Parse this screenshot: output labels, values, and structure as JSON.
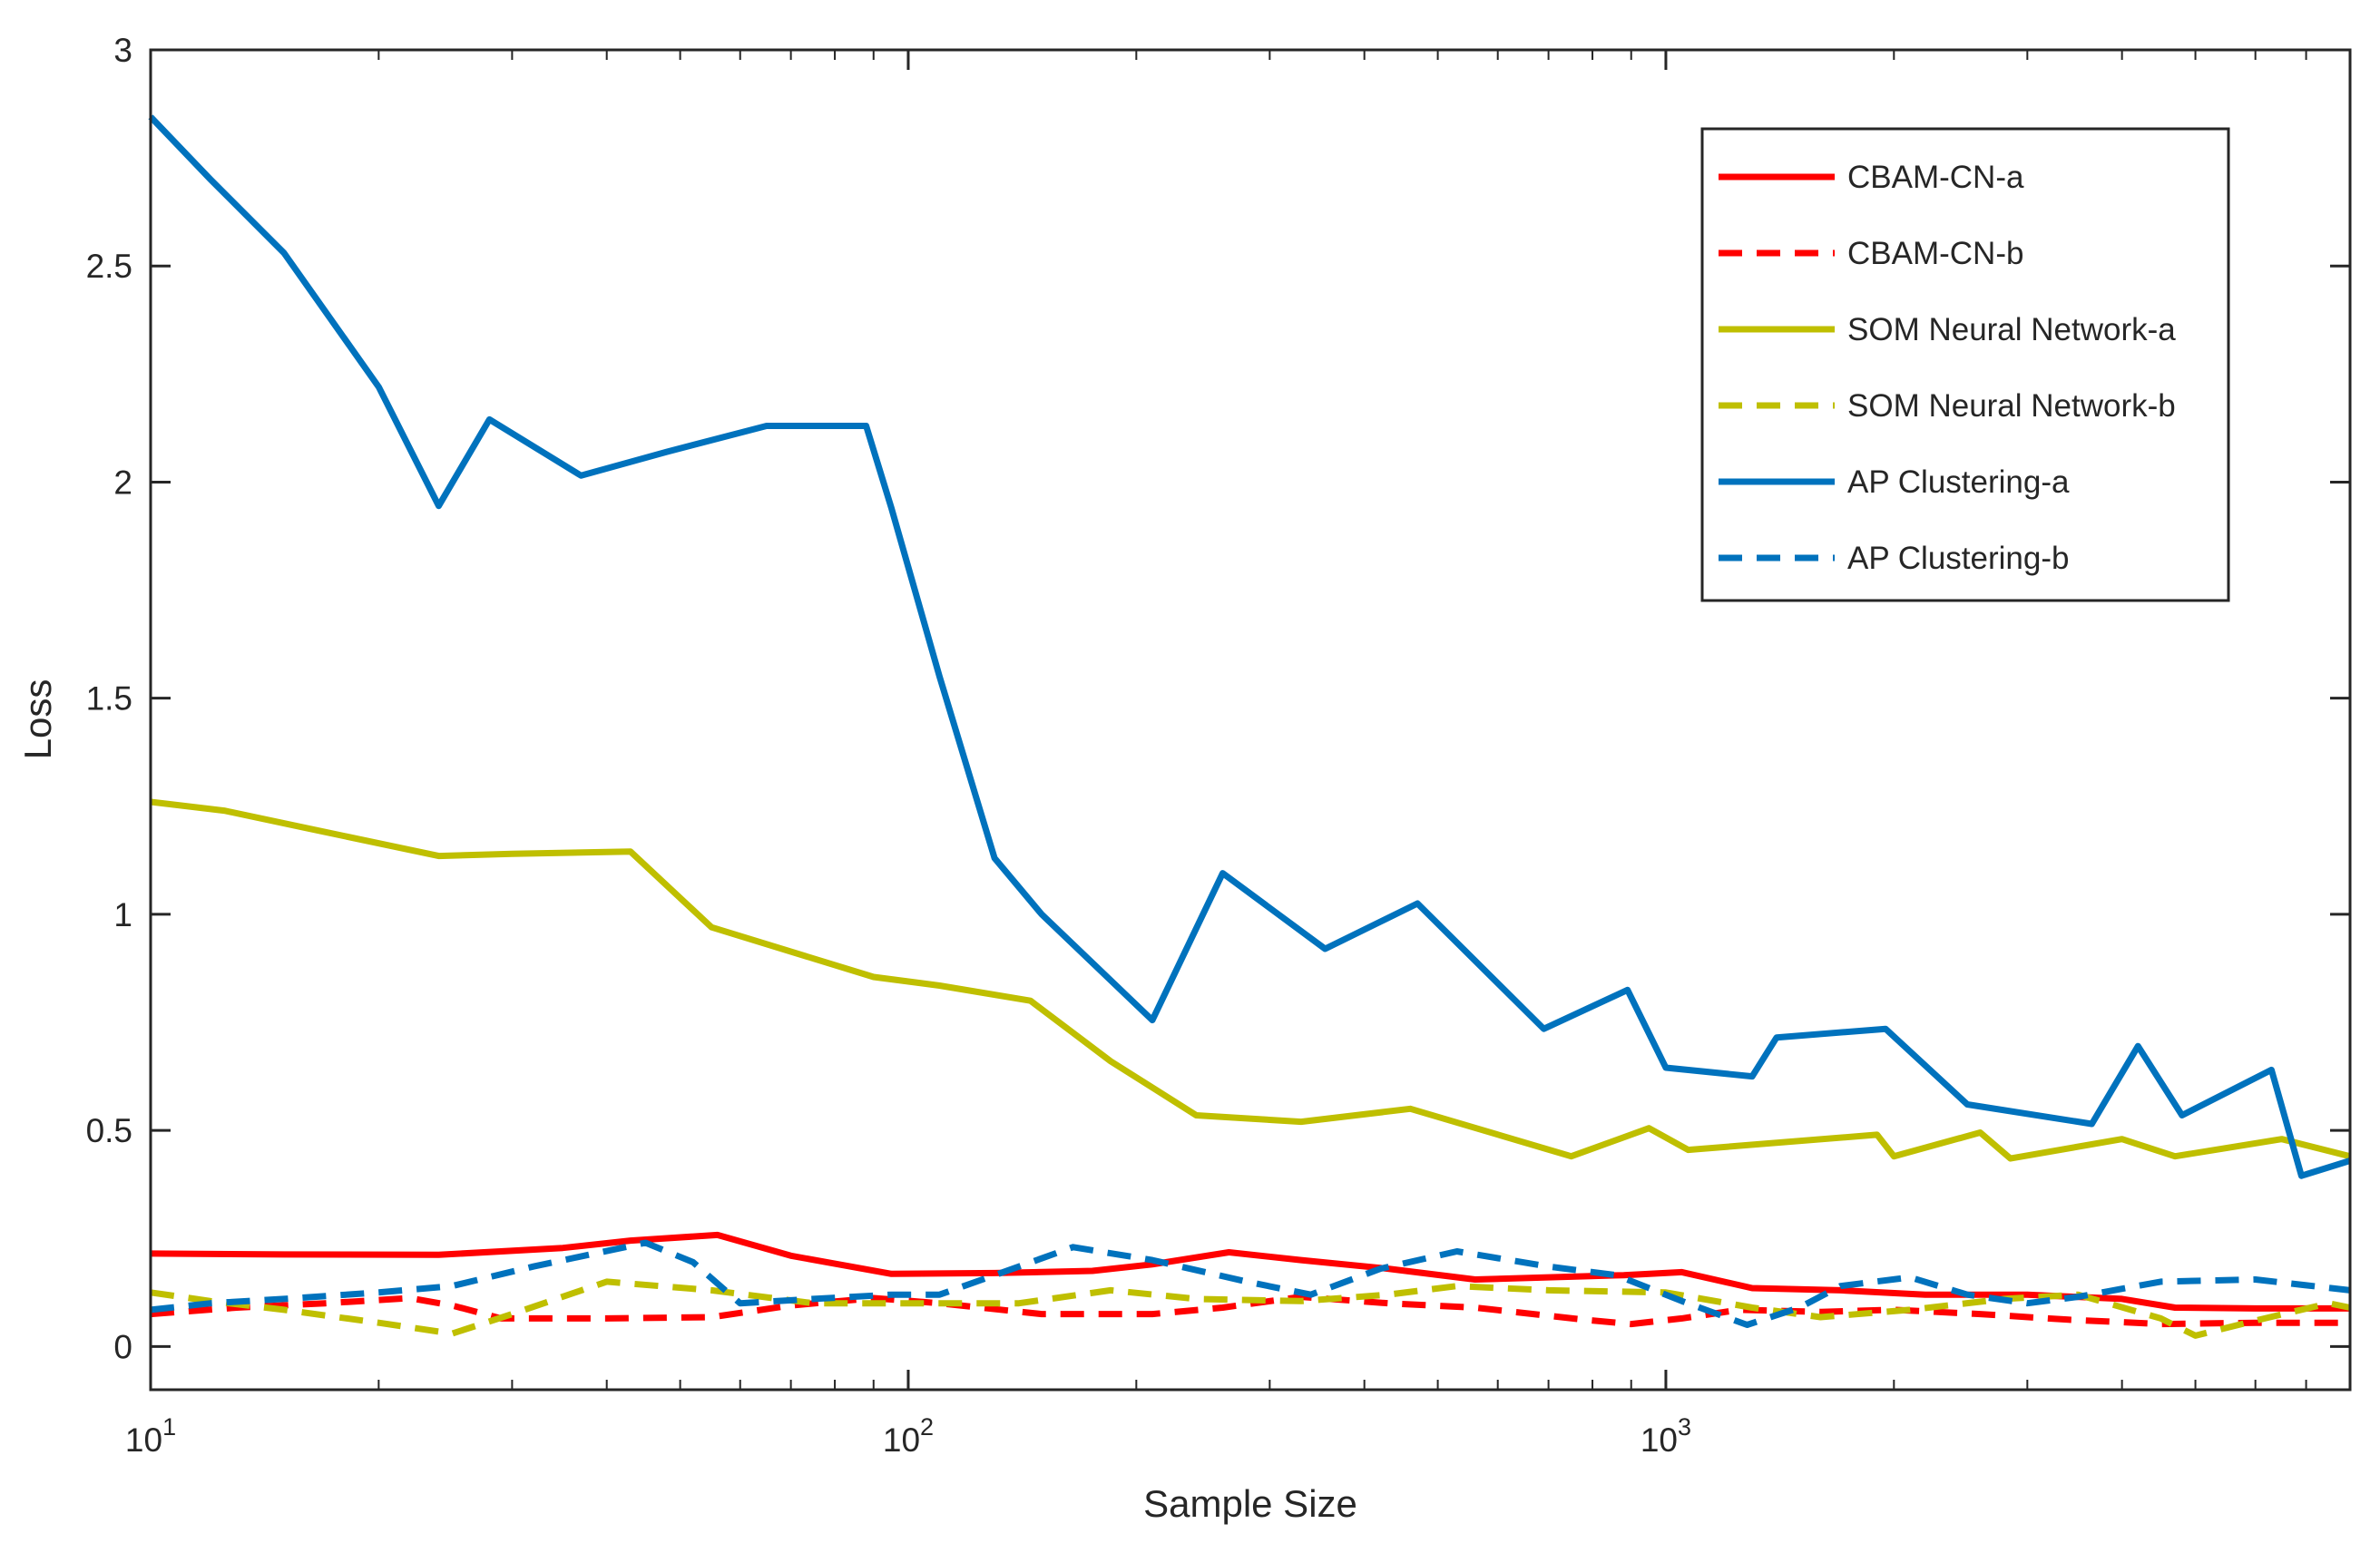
{
  "chart_data": {
    "type": "line",
    "title": "",
    "xlabel": "Sample Size",
    "ylabel": "Loss",
    "xscale": "log",
    "xlim": [
      10,
      8000
    ],
    "ylim": [
      -0.1,
      3
    ],
    "yticks": [
      0,
      0.5,
      1,
      1.5,
      2,
      2.5,
      3
    ],
    "ytick_labels": [
      "0",
      "0.5",
      "1",
      "1.5",
      "2",
      "2.5",
      "3"
    ],
    "xticks": [
      {
        "value": 10,
        "base": "10",
        "exp": "1"
      },
      {
        "value": 100,
        "base": "10",
        "exp": "2"
      },
      {
        "value": 1000,
        "base": "10",
        "exp": "3"
      }
    ],
    "legend_position": "top-right",
    "series": [
      {
        "name": "CBAM-CN-a",
        "color": "#ff0000",
        "dash": "solid",
        "points": [
          [
            10,
            0.215
          ],
          [
            15,
            0.213
          ],
          [
            24,
            0.212
          ],
          [
            35,
            0.228
          ],
          [
            43,
            0.245
          ],
          [
            56,
            0.258
          ],
          [
            70,
            0.21
          ],
          [
            95,
            0.168
          ],
          [
            130,
            0.17
          ],
          [
            175,
            0.175
          ],
          [
            210,
            0.19
          ],
          [
            265,
            0.218
          ],
          [
            330,
            0.2
          ],
          [
            430,
            0.18
          ],
          [
            560,
            0.155
          ],
          [
            700,
            0.16
          ],
          [
            880,
            0.165
          ],
          [
            1050,
            0.172
          ],
          [
            1300,
            0.135
          ],
          [
            1700,
            0.13
          ],
          [
            2200,
            0.12
          ],
          [
            3000,
            0.12
          ],
          [
            4000,
            0.11
          ],
          [
            4700,
            0.09
          ],
          [
            6000,
            0.088
          ],
          [
            8000,
            0.088
          ]
        ]
      },
      {
        "name": "CBAM-CN-b",
        "color": "#ff0000",
        "dash": "dashed",
        "points": [
          [
            10,
            0.075
          ],
          [
            13,
            0.09
          ],
          [
            17,
            0.1
          ],
          [
            22,
            0.112
          ],
          [
            25,
            0.095
          ],
          [
            29,
            0.065
          ],
          [
            40,
            0.065
          ],
          [
            55,
            0.068
          ],
          [
            70,
            0.095
          ],
          [
            90,
            0.112
          ],
          [
            110,
            0.1
          ],
          [
            150,
            0.075
          ],
          [
            210,
            0.075
          ],
          [
            260,
            0.09
          ],
          [
            330,
            0.115
          ],
          [
            430,
            0.1
          ],
          [
            560,
            0.09
          ],
          [
            780,
            0.062
          ],
          [
            900,
            0.052
          ],
          [
            1050,
            0.065
          ],
          [
            1250,
            0.085
          ],
          [
            1600,
            0.08
          ],
          [
            2000,
            0.085
          ],
          [
            2600,
            0.075
          ],
          [
            3400,
            0.062
          ],
          [
            4500,
            0.052
          ],
          [
            6000,
            0.055
          ],
          [
            8000,
            0.055
          ]
        ]
      },
      {
        "name": "SOM Neural Network-a",
        "color": "#bfbf00",
        "dash": "solid",
        "points": [
          [
            10,
            1.26
          ],
          [
            12.5,
            1.24
          ],
          [
            16,
            1.2
          ],
          [
            24,
            1.135
          ],
          [
            30,
            1.14
          ],
          [
            43,
            1.145
          ],
          [
            55,
            0.97
          ],
          [
            90,
            0.855
          ],
          [
            110,
            0.835
          ],
          [
            145,
            0.8
          ],
          [
            185,
            0.66
          ],
          [
            240,
            0.535
          ],
          [
            330,
            0.52
          ],
          [
            460,
            0.55
          ],
          [
            750,
            0.44
          ],
          [
            950,
            0.505
          ],
          [
            1070,
            0.455
          ],
          [
            1900,
            0.49
          ],
          [
            2000,
            0.44
          ],
          [
            2600,
            0.495
          ],
          [
            2850,
            0.435
          ],
          [
            4000,
            0.48
          ],
          [
            4700,
            0.44
          ],
          [
            6500,
            0.48
          ],
          [
            8000,
            0.44
          ]
        ]
      },
      {
        "name": "SOM Neural Network-b",
        "color": "#bfbf00",
        "dash": "dashed",
        "points": [
          [
            10,
            0.125
          ],
          [
            12,
            0.105
          ],
          [
            15,
            0.085
          ],
          [
            20,
            0.055
          ],
          [
            25,
            0.03
          ],
          [
            30,
            0.075
          ],
          [
            40,
            0.15
          ],
          [
            55,
            0.13
          ],
          [
            75,
            0.1
          ],
          [
            100,
            0.1
          ],
          [
            140,
            0.1
          ],
          [
            185,
            0.13
          ],
          [
            240,
            0.11
          ],
          [
            330,
            0.105
          ],
          [
            430,
            0.12
          ],
          [
            530,
            0.14
          ],
          [
            700,
            0.13
          ],
          [
            1000,
            0.125
          ],
          [
            1300,
            0.09
          ],
          [
            1600,
            0.068
          ],
          [
            2100,
            0.085
          ],
          [
            2800,
            0.11
          ],
          [
            3500,
            0.12
          ],
          [
            4500,
            0.065
          ],
          [
            5000,
            0.025
          ],
          [
            6000,
            0.06
          ],
          [
            7500,
            0.1
          ],
          [
            8000,
            0.09
          ]
        ]
      },
      {
        "name": "AP Clustering-a",
        "color": "#0072bd",
        "dash": "solid",
        "points": [
          [
            10,
            2.845
          ],
          [
            12,
            2.7
          ],
          [
            15,
            2.53
          ],
          [
            20,
            2.22
          ],
          [
            24,
            1.945
          ],
          [
            28,
            2.145
          ],
          [
            37,
            2.015
          ],
          [
            48,
            2.07
          ],
          [
            65,
            2.13
          ],
          [
            88,
            2.13
          ],
          [
            95,
            1.94
          ],
          [
            110,
            1.55
          ],
          [
            130,
            1.13
          ],
          [
            150,
            1.0
          ],
          [
            210,
            0.755
          ],
          [
            260,
            1.095
          ],
          [
            355,
            0.92
          ],
          [
            470,
            1.025
          ],
          [
            690,
            0.735
          ],
          [
            890,
            0.825
          ],
          [
            1000,
            0.645
          ],
          [
            1300,
            0.625
          ],
          [
            1400,
            0.715
          ],
          [
            1950,
            0.735
          ],
          [
            2500,
            0.56
          ],
          [
            3650,
            0.515
          ],
          [
            4200,
            0.695
          ],
          [
            4800,
            0.535
          ],
          [
            6300,
            0.64
          ],
          [
            6900,
            0.395
          ],
          [
            8000,
            0.43
          ]
        ]
      },
      {
        "name": "AP Clustering-b",
        "color": "#0072bd",
        "dash": "dashed",
        "points": [
          [
            10,
            0.085
          ],
          [
            12,
            0.1
          ],
          [
            15,
            0.11
          ],
          [
            20,
            0.125
          ],
          [
            25,
            0.14
          ],
          [
            32,
            0.185
          ],
          [
            45,
            0.24
          ],
          [
            52,
            0.195
          ],
          [
            60,
            0.1
          ],
          [
            75,
            0.11
          ],
          [
            95,
            0.12
          ],
          [
            110,
            0.12
          ],
          [
            140,
            0.185
          ],
          [
            165,
            0.23
          ],
          [
            210,
            0.2
          ],
          [
            280,
            0.15
          ],
          [
            340,
            0.12
          ],
          [
            420,
            0.18
          ],
          [
            530,
            0.22
          ],
          [
            700,
            0.185
          ],
          [
            860,
            0.165
          ],
          [
            1050,
            0.105
          ],
          [
            1280,
            0.05
          ],
          [
            1500,
            0.09
          ],
          [
            1700,
            0.14
          ],
          [
            2100,
            0.16
          ],
          [
            2500,
            0.12
          ],
          [
            3000,
            0.1
          ],
          [
            3500,
            0.115
          ],
          [
            4500,
            0.15
          ],
          [
            6000,
            0.155
          ],
          [
            8000,
            0.13
          ]
        ]
      }
    ]
  }
}
